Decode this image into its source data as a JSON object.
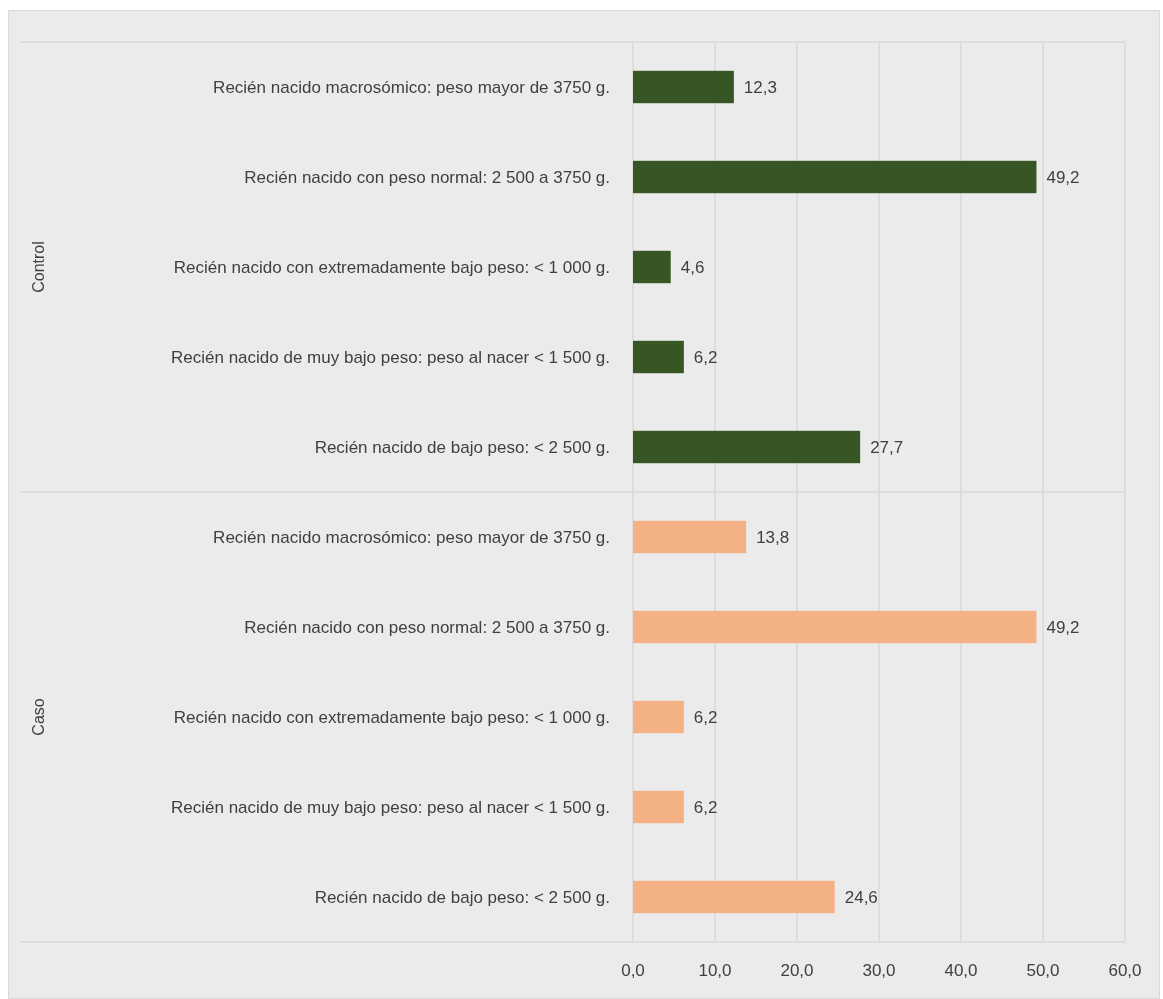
{
  "chart_data": {
    "type": "bar",
    "orientation": "horizontal",
    "categories": [
      "Recién nacido macrosómico: peso mayor de 3750 g.",
      "Recién nacido con peso normal: 2 500 a 3750 g.",
      "Recién nacido con extremadamente bajo peso: < 1 000 g.",
      "Recién nacido de muy bajo peso: peso al nacer < 1 500 g.",
      "Recién nacido de bajo peso: < 2 500 g.",
      "Recién nacido macrosómico: peso mayor de 3750 g.",
      "Recién nacido con peso normal: 2 500 a 3750 g.",
      "Recién nacido con extremadamente bajo peso: < 1 000 g.",
      "Recién nacido de muy bajo peso: peso al nacer < 1 500 g.",
      "Recién nacido de bajo peso: < 2 500 g."
    ],
    "series": [
      {
        "color": "#375623",
        "values": [
          12.3,
          49.2,
          4.6,
          6.2,
          27.7,
          null,
          null,
          null,
          null,
          null
        ],
        "value_labels": [
          "12,3",
          "49,2",
          "4,6",
          "6,2",
          "27,7",
          null,
          null,
          null,
          null,
          null
        ]
      },
      {
        "color": "#f4b183",
        "values": [
          null,
          null,
          null,
          null,
          null,
          13.8,
          49.2,
          6.2,
          6.2,
          24.6
        ],
        "value_labels": [
          null,
          null,
          null,
          null,
          null,
          "13,8",
          "49,2",
          "6,2",
          "6,2",
          "24,6"
        ]
      }
    ],
    "xlim": [
      0,
      60
    ],
    "xticks": [
      {
        "value": 0,
        "label": "0,0"
      },
      {
        "value": 10,
        "label": "10,0"
      },
      {
        "value": 20,
        "label": "20,0"
      },
      {
        "value": 30,
        "label": "30,0"
      },
      {
        "value": 40,
        "label": "40,0"
      },
      {
        "value": 50,
        "label": "50,0"
      },
      {
        "value": 60,
        "label": "60,0"
      }
    ],
    "annotations": [
      "Control",
      "Caso"
    ],
    "grid": "x",
    "legend": false
  }
}
